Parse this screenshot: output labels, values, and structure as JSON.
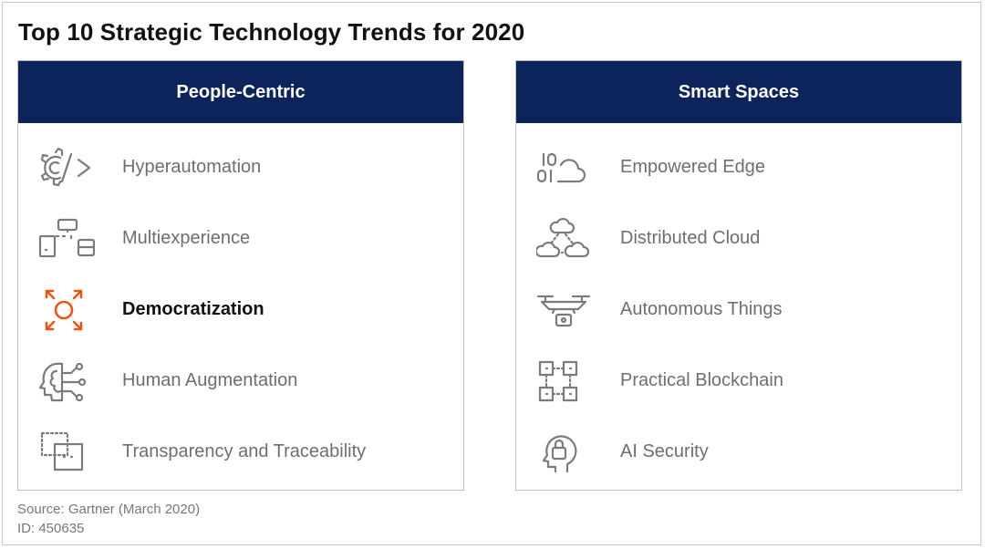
{
  "title": "Top 10 Strategic Technology Trends for 2020",
  "panels": [
    {
      "header": "People-Centric",
      "items": [
        {
          "label": "Hyperautomation",
          "icon": "gear-code-icon",
          "active": false
        },
        {
          "label": "Multiexperience",
          "icon": "devices-icon",
          "active": false
        },
        {
          "label": "Democratization",
          "icon": "expand-circle-icon",
          "active": true
        },
        {
          "label": "Human Augmentation",
          "icon": "brain-head-icon",
          "active": false
        },
        {
          "label": "Transparency and Traceability",
          "icon": "dotted-squares-icon",
          "active": false
        }
      ]
    },
    {
      "header": "Smart Spaces",
      "items": [
        {
          "label": "Empowered Edge",
          "icon": "binary-cloud-icon",
          "active": false
        },
        {
          "label": "Distributed Cloud",
          "icon": "cloud-network-icon",
          "active": false
        },
        {
          "label": "Autonomous Things",
          "icon": "drone-icon",
          "active": false
        },
        {
          "label": "Practical Blockchain",
          "icon": "blockchain-icon",
          "active": false
        },
        {
          "label": "AI Security",
          "icon": "head-lock-icon",
          "active": false
        }
      ]
    }
  ],
  "footer": {
    "source": "Source: Gartner (March 2020)",
    "id": "ID: 450635"
  },
  "colors": {
    "header_bg": "#0c2459",
    "accent": "#e8551b",
    "text_muted": "#6e6e6e"
  }
}
